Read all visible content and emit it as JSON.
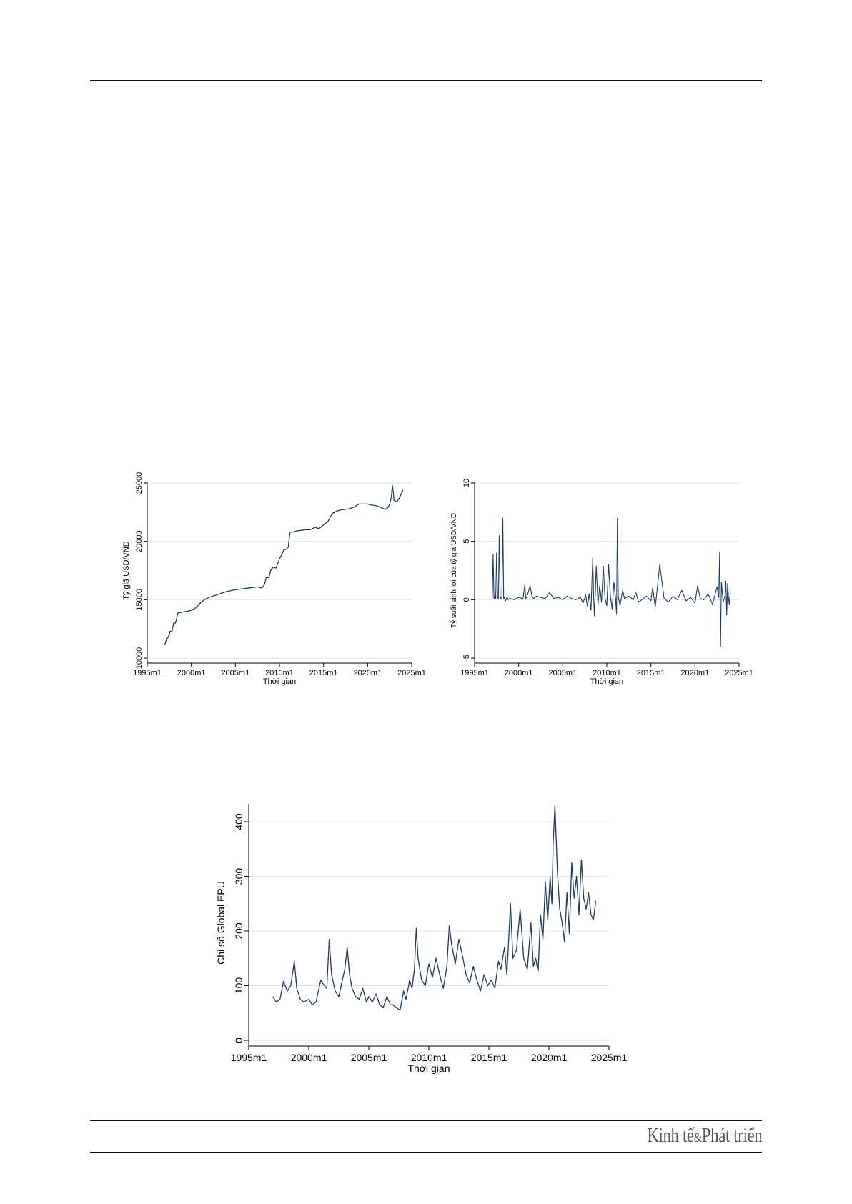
{
  "footer": {
    "logo_part1": "Kinh tế",
    "logo_amp": "&",
    "logo_part2": "Phát triển"
  },
  "colors": {
    "line": "#1f3a5f",
    "grid": "#dce7ef",
    "axis": "#000000"
  },
  "chart_data": [
    {
      "type": "line",
      "xlabel": "Thời gian",
      "ylabel": "Tỷ giá USD/VND",
      "xlim": [
        1995,
        2025
      ],
      "ylim": [
        10000,
        25000
      ],
      "xticks": [
        "1995m1",
        "2000m1",
        "2005m1",
        "2010m1",
        "2015m1",
        "2020m1",
        "2025m1"
      ],
      "yticks": [
        "10000",
        "15000",
        "20000",
        "25000"
      ],
      "grid": true,
      "series": [
        {
          "x": [
            1997.0,
            1997.1,
            1997.2,
            1997.3,
            1997.5,
            1997.6,
            1997.8,
            1998.0,
            1998.2,
            1998.5,
            1998.8,
            1999.0,
            1999.5,
            2000.0,
            2000.5,
            2001.0,
            2001.5,
            2002.0,
            2003.0,
            2004.0,
            2005.0,
            2006.0,
            2007.0,
            2007.5,
            2008.0,
            2008.3,
            2008.5,
            2008.8,
            2009.0,
            2009.3,
            2009.6,
            2010.0,
            2010.3,
            2010.5,
            2010.7,
            2011.0,
            2011.2,
            2011.5,
            2012.0,
            2013.0,
            2013.5,
            2014.0,
            2014.5,
            2015.0,
            2015.5,
            2016.0,
            2016.5,
            2017.0,
            2018.0,
            2018.5,
            2019.0,
            2020.0,
            2020.5,
            2021.0,
            2021.5,
            2022.0,
            2022.3,
            2022.5,
            2022.7,
            2022.8,
            2022.9,
            2023.0,
            2023.3,
            2023.6,
            2023.9,
            2024.0
          ],
          "y": [
            11150,
            11400,
            11700,
            11700,
            12000,
            12300,
            12300,
            13000,
            13000,
            13900,
            13900,
            13950,
            14000,
            14100,
            14300,
            14700,
            15000,
            15200,
            15450,
            15700,
            15850,
            15950,
            16050,
            16100,
            16000,
            16300,
            16900,
            16900,
            17500,
            17800,
            17700,
            18500,
            18900,
            19300,
            19300,
            19500,
            20800,
            20800,
            20900,
            21000,
            21000,
            21200,
            21100,
            21400,
            21700,
            22400,
            22600,
            22700,
            22800,
            22950,
            23200,
            23200,
            23100,
            23050,
            22900,
            22750,
            22900,
            23200,
            23800,
            24800,
            24300,
            23500,
            23400,
            23700,
            24200,
            24400
          ]
        }
      ]
    },
    {
      "type": "line",
      "xlabel": "Thời gian",
      "ylabel": "Tỷ suất sinh lợi của tỷ giá USD/VND",
      "xlim": [
        1995,
        2025
      ],
      "ylim": [
        -5,
        10
      ],
      "xticks": [
        "1995m1",
        "2000m1",
        "2005m1",
        "2010m1",
        "2015m1",
        "2020m1",
        "2025m1"
      ],
      "yticks": [
        "-5",
        "0",
        "5",
        "10"
      ],
      "grid": true,
      "series": [
        {
          "x": [
            1997.0,
            1997.1,
            1997.2,
            1997.3,
            1997.4,
            1997.5,
            1997.6,
            1997.7,
            1997.8,
            1997.9,
            1998.0,
            1998.1,
            1998.2,
            1998.3,
            1998.4,
            1998.5,
            1998.6,
            1998.7,
            1998.8,
            1999.0,
            1999.5,
            2000.0,
            2000.5,
            2000.7,
            2000.8,
            2001.0,
            2001.3,
            2001.5,
            2001.7,
            2002.0,
            2002.5,
            2003.0,
            2003.5,
            2004.0,
            2004.5,
            2005.0,
            2005.5,
            2006.0,
            2006.5,
            2007.0,
            2007.3,
            2007.6,
            2007.8,
            2008.0,
            2008.2,
            2008.4,
            2008.5,
            2008.6,
            2008.8,
            2009.0,
            2009.2,
            2009.4,
            2009.6,
            2009.8,
            2010.0,
            2010.2,
            2010.4,
            2010.6,
            2010.8,
            2011.0,
            2011.1,
            2011.2,
            2011.3,
            2011.5,
            2011.8,
            2012.0,
            2012.5,
            2013.0,
            2013.3,
            2013.6,
            2014.0,
            2014.5,
            2015.0,
            2015.2,
            2015.5,
            2015.7,
            2016.0,
            2016.5,
            2017.0,
            2017.5,
            2018.0,
            2018.5,
            2019.0,
            2019.5,
            2020.0,
            2020.3,
            2020.6,
            2021.0,
            2021.5,
            2022.0,
            2022.3,
            2022.5,
            2022.7,
            2022.8,
            2022.85,
            2022.9,
            2023.0,
            2023.2,
            2023.4,
            2023.5,
            2023.6,
            2023.7,
            2023.8,
            2023.9,
            2024.0
          ],
          "y": [
            0.2,
            3.9,
            0.1,
            0.3,
            0.1,
            4.0,
            0.2,
            0.1,
            5.5,
            0.1,
            0.2,
            0.1,
            7.0,
            0.1,
            0.2,
            -0.1,
            0.1,
            0.2,
            0.0,
            0.1,
            0.0,
            0.2,
            0.1,
            1.3,
            0.1,
            0.4,
            1.2,
            0.3,
            0.1,
            0.3,
            0.2,
            0.1,
            0.6,
            0.1,
            0.2,
            0.0,
            0.3,
            0.1,
            0.0,
            0.2,
            -0.3,
            0.4,
            -0.6,
            0.5,
            -0.9,
            3.6,
            0.3,
            -1.4,
            2.9,
            -0.4,
            1.2,
            -0.2,
            2.9,
            0.1,
            -0.5,
            3.0,
            0.4,
            -0.8,
            1.5,
            0.0,
            -1.2,
            7.0,
            0.3,
            -0.5,
            0.8,
            0.1,
            0.3,
            0.0,
            0.6,
            -0.2,
            0.0,
            0.3,
            -0.1,
            1.0,
            -0.6,
            0.8,
            3.0,
            0.1,
            -0.2,
            0.3,
            0.0,
            0.8,
            -0.1,
            0.2,
            -0.3,
            1.2,
            0.1,
            0.0,
            0.5,
            -0.4,
            0.5,
            1.1,
            0.2,
            4.1,
            -0.6,
            -4.0,
            1.5,
            -0.2,
            0.3,
            1.6,
            -1.3,
            1.4,
            0.2,
            -0.4,
            0.6
          ]
        }
      ]
    },
    {
      "type": "line",
      "xlabel": "Thời gian",
      "ylabel": "Chỉ số Global EPU",
      "xlim": [
        1995,
        2025
      ],
      "ylim": [
        0,
        430
      ],
      "xticks": [
        "1995m1",
        "2000m1",
        "2005m1",
        "2010m1",
        "2015m1",
        "2020m1",
        "2025m1"
      ],
      "yticks": [
        "0",
        "100",
        "200",
        "300",
        "400"
      ],
      "grid": true,
      "series": [
        {
          "x": [
            1997.0,
            1997.3,
            1997.6,
            1997.9,
            1998.2,
            1998.5,
            1998.8,
            1999.0,
            1999.3,
            1999.6,
            2000.0,
            2000.3,
            2000.6,
            2001.0,
            2001.3,
            2001.5,
            2001.7,
            2001.9,
            2002.2,
            2002.5,
            2002.8,
            2003.0,
            2003.2,
            2003.4,
            2003.6,
            2003.9,
            2004.2,
            2004.5,
            2004.8,
            2005.0,
            2005.3,
            2005.6,
            2005.9,
            2006.2,
            2006.5,
            2006.8,
            2007.0,
            2007.3,
            2007.6,
            2007.9,
            2008.1,
            2008.4,
            2008.6,
            2008.8,
            2008.95,
            2009.1,
            2009.4,
            2009.7,
            2010.0,
            2010.3,
            2010.6,
            2010.9,
            2011.2,
            2011.5,
            2011.7,
            2011.9,
            2012.2,
            2012.5,
            2012.8,
            2013.1,
            2013.4,
            2013.7,
            2014.0,
            2014.3,
            2014.6,
            2014.9,
            2015.2,
            2015.5,
            2015.8,
            2016.0,
            2016.3,
            2016.5,
            2016.8,
            2017.0,
            2017.3,
            2017.6,
            2017.9,
            2018.2,
            2018.5,
            2018.7,
            2018.9,
            2019.1,
            2019.3,
            2019.5,
            2019.7,
            2019.9,
            2020.1,
            2020.25,
            2020.35,
            2020.5,
            2020.7,
            2020.9,
            2021.1,
            2021.3,
            2021.5,
            2021.7,
            2021.9,
            2022.1,
            2022.3,
            2022.5,
            2022.7,
            2022.9,
            2023.1,
            2023.3,
            2023.5,
            2023.7,
            2023.9
          ],
          "y": [
            80,
            70,
            75,
            108,
            90,
            100,
            145,
            95,
            75,
            70,
            75,
            65,
            70,
            110,
            100,
            95,
            185,
            120,
            90,
            80,
            110,
            130,
            170,
            120,
            95,
            80,
            75,
            95,
            70,
            80,
            70,
            85,
            65,
            60,
            80,
            65,
            65,
            60,
            55,
            90,
            75,
            110,
            95,
            130,
            205,
            150,
            110,
            100,
            140,
            115,
            150,
            120,
            95,
            135,
            210,
            175,
            140,
            185,
            155,
            120,
            105,
            135,
            110,
            90,
            120,
            100,
            110,
            95,
            145,
            130,
            170,
            120,
            250,
            150,
            165,
            240,
            150,
            130,
            215,
            135,
            150,
            125,
            230,
            185,
            290,
            220,
            300,
            250,
            360,
            430,
            310,
            240,
            215,
            180,
            270,
            195,
            325,
            260,
            300,
            230,
            330,
            260,
            240,
            270,
            230,
            220,
            255
          ]
        }
      ]
    }
  ]
}
